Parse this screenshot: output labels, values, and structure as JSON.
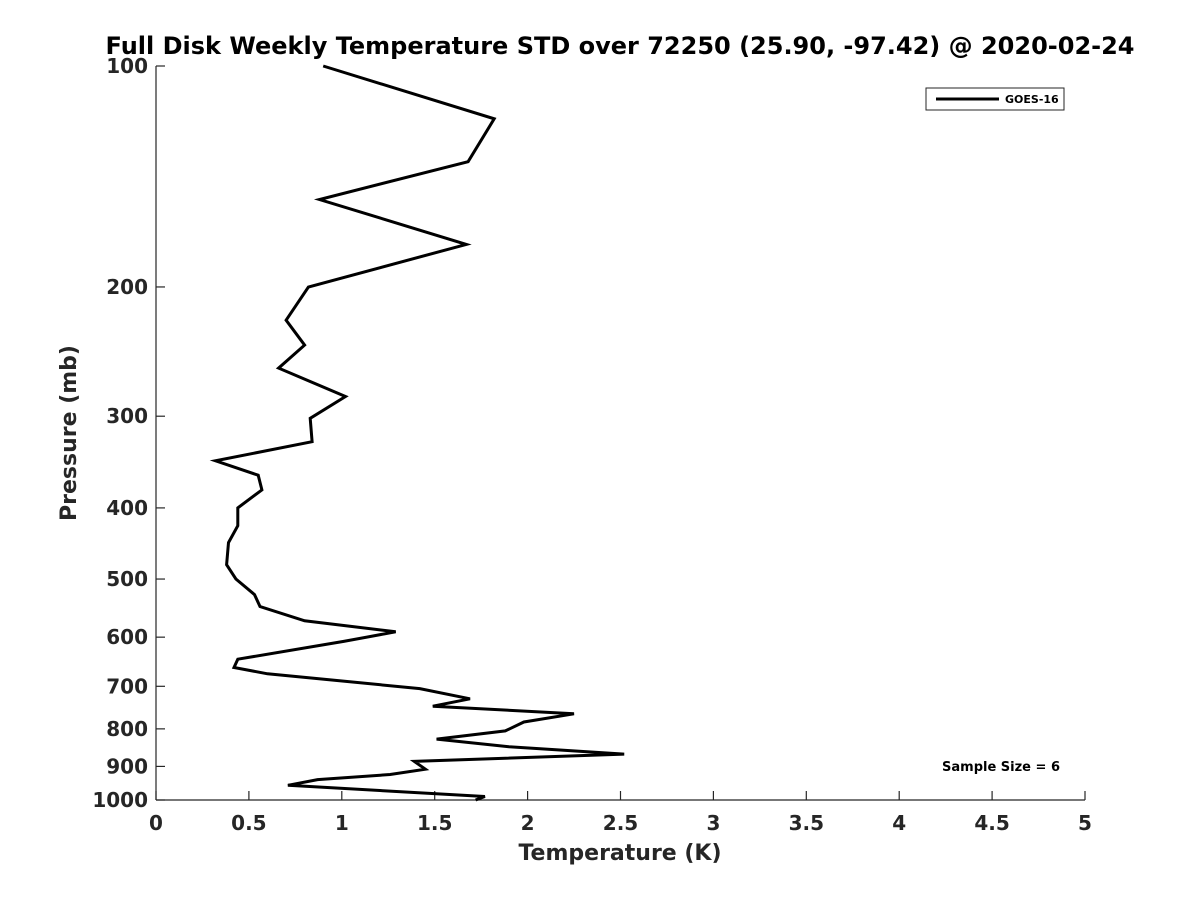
{
  "chart_data": {
    "type": "line",
    "title": "Full Disk Weekly Temperature STD over 72250 (25.90, -97.42) @ 2020-02-24",
    "xlabel": "Temperature (K)",
    "ylabel": "Pressure (mb)",
    "xlim": [
      0,
      5
    ],
    "ylim": [
      100,
      1000
    ],
    "y_scale": "log",
    "y_reversed": true,
    "x_ticks": [
      "0",
      "0.5",
      "1",
      "1.5",
      "2",
      "2.5",
      "3",
      "3.5",
      "4",
      "4.5",
      "5"
    ],
    "y_ticks": [
      "100",
      "200",
      "300",
      "400",
      "500",
      "600",
      "700",
      "800",
      "900",
      "1000"
    ],
    "grid": false,
    "legend_position": "top-right",
    "annotation": "Sample Size = 6",
    "line_color": "#000000",
    "series": [
      {
        "name": "GOES-16",
        "points": [
          [
            0.9,
            100
          ],
          [
            1.82,
            118
          ],
          [
            1.68,
            135
          ],
          [
            0.88,
            152
          ],
          [
            1.67,
            175
          ],
          [
            0.82,
            200
          ],
          [
            0.7,
            222
          ],
          [
            0.8,
            240
          ],
          [
            0.66,
            258
          ],
          [
            1.02,
            282
          ],
          [
            0.83,
            302
          ],
          [
            0.84,
            325
          ],
          [
            0.32,
            345
          ],
          [
            0.55,
            361
          ],
          [
            0.57,
            378
          ],
          [
            0.44,
            400
          ],
          [
            0.44,
            423
          ],
          [
            0.39,
            446
          ],
          [
            0.38,
            478
          ],
          [
            0.43,
            500
          ],
          [
            0.53,
            525
          ],
          [
            0.56,
            545
          ],
          [
            0.8,
            570
          ],
          [
            1.29,
            590
          ],
          [
            1.01,
            608
          ],
          [
            0.44,
            643
          ],
          [
            0.42,
            660
          ],
          [
            0.6,
            673
          ],
          [
            1.42,
            705
          ],
          [
            1.69,
            728
          ],
          [
            1.49,
            745
          ],
          [
            2.25,
            763
          ],
          [
            1.98,
            783
          ],
          [
            1.88,
            805
          ],
          [
            1.51,
            826
          ],
          [
            1.9,
            846
          ],
          [
            2.52,
            866
          ],
          [
            1.39,
            886
          ],
          [
            1.45,
            908
          ],
          [
            1.26,
            923
          ],
          [
            0.87,
            938
          ],
          [
            0.71,
            955
          ],
          [
            1.77,
            989
          ],
          [
            1.72,
            1000
          ]
        ]
      }
    ]
  }
}
